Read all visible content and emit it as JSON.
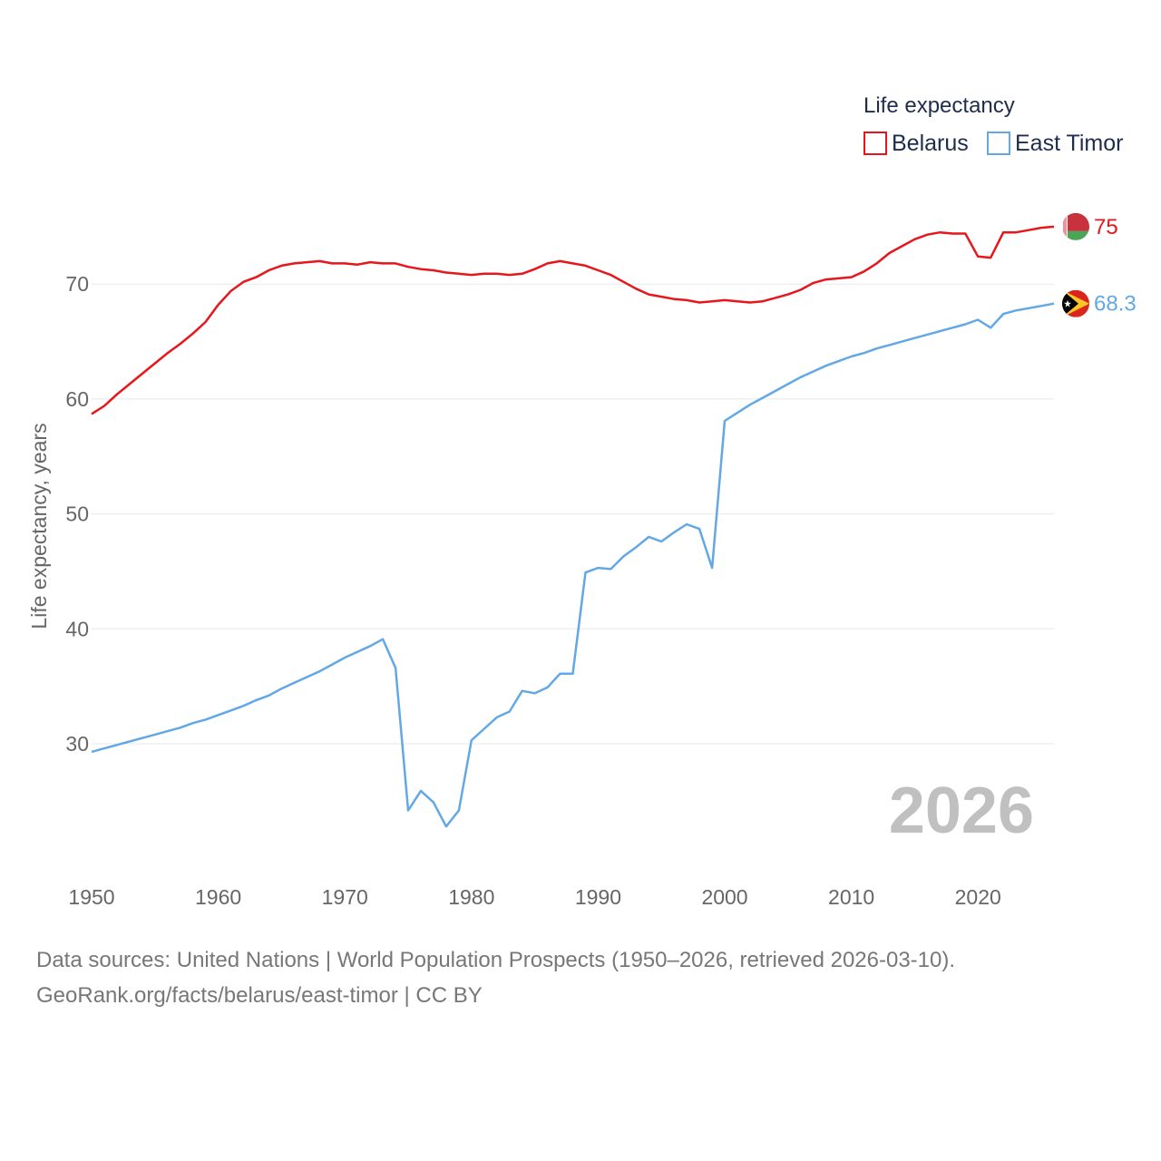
{
  "chart_data": {
    "type": "line",
    "legend_title": "Life expectancy",
    "ylabel": "Life expectancy, years",
    "xlabel": "",
    "year_watermark": "2026",
    "xlim": [
      1950,
      2026
    ],
    "ylim": [
      20,
      76
    ],
    "yticks": [
      30,
      40,
      50,
      60,
      70
    ],
    "xticks": [
      1950,
      1960,
      1970,
      1980,
      1990,
      2000,
      2010,
      2020
    ],
    "legend_position": "top-right",
    "series": [
      {
        "name": "Belarus",
        "color": "#e8161b",
        "end_label": "75",
        "flag": "belarus",
        "x": [
          1950,
          1951,
          1952,
          1953,
          1954,
          1955,
          1956,
          1957,
          1958,
          1959,
          1960,
          1961,
          1962,
          1963,
          1964,
          1965,
          1966,
          1967,
          1968,
          1969,
          1970,
          1971,
          1972,
          1973,
          1974,
          1975,
          1976,
          1977,
          1978,
          1979,
          1980,
          1981,
          1982,
          1983,
          1984,
          1985,
          1986,
          1987,
          1988,
          1989,
          1990,
          1991,
          1992,
          1993,
          1994,
          1995,
          1996,
          1997,
          1998,
          1999,
          2000,
          2001,
          2002,
          2003,
          2004,
          2005,
          2006,
          2007,
          2008,
          2009,
          2010,
          2011,
          2012,
          2013,
          2014,
          2015,
          2016,
          2017,
          2018,
          2019,
          2020,
          2021,
          2022,
          2023,
          2024,
          2025,
          2026
        ],
        "values": [
          58.7,
          59.4,
          60.4,
          61.3,
          62.2,
          63.1,
          64.0,
          64.8,
          65.7,
          66.7,
          68.2,
          69.4,
          70.2,
          70.6,
          71.2,
          71.6,
          71.8,
          71.9,
          72.0,
          71.8,
          71.8,
          71.7,
          71.9,
          71.8,
          71.8,
          71.5,
          71.3,
          71.2,
          71.0,
          70.9,
          70.8,
          70.9,
          70.9,
          70.8,
          70.9,
          71.3,
          71.8,
          72.0,
          71.8,
          71.6,
          71.2,
          70.8,
          70.2,
          69.6,
          69.1,
          68.9,
          68.7,
          68.6,
          68.4,
          68.5,
          68.6,
          68.5,
          68.4,
          68.5,
          68.8,
          69.1,
          69.5,
          70.1,
          70.4,
          70.5,
          70.6,
          71.1,
          71.8,
          72.7,
          73.3,
          73.9,
          74.3,
          74.5,
          74.4,
          74.4,
          72.4,
          72.3,
          74.5,
          74.5,
          74.7,
          74.9,
          75.0
        ]
      },
      {
        "name": "East Timor",
        "color": "#62a8e5",
        "end_label": "68.3",
        "flag": "east-timor",
        "x": [
          1950,
          1951,
          1952,
          1953,
          1954,
          1955,
          1956,
          1957,
          1958,
          1959,
          1960,
          1961,
          1962,
          1963,
          1964,
          1965,
          1966,
          1967,
          1968,
          1969,
          1970,
          1971,
          1972,
          1973,
          1974,
          1975,
          1976,
          1977,
          1978,
          1979,
          1980,
          1981,
          1982,
          1983,
          1984,
          1985,
          1986,
          1987,
          1988,
          1989,
          1990,
          1991,
          1992,
          1993,
          1994,
          1995,
          1996,
          1997,
          1998,
          1999,
          2000,
          2001,
          2002,
          2003,
          2004,
          2005,
          2006,
          2007,
          2008,
          2009,
          2010,
          2011,
          2012,
          2013,
          2014,
          2015,
          2016,
          2017,
          2018,
          2019,
          2020,
          2021,
          2022,
          2023,
          2024,
          2025,
          2026
        ],
        "values": [
          29.3,
          29.6,
          29.9,
          30.2,
          30.5,
          30.8,
          31.1,
          31.4,
          31.8,
          32.1,
          32.5,
          32.9,
          33.3,
          33.8,
          34.2,
          34.8,
          35.3,
          35.8,
          36.3,
          36.9,
          37.5,
          38.0,
          38.5,
          39.1,
          36.6,
          24.2,
          25.9,
          24.9,
          22.8,
          24.2,
          30.3,
          31.3,
          32.3,
          32.8,
          34.6,
          34.4,
          34.9,
          36.1,
          36.1,
          44.9,
          45.3,
          45.2,
          46.3,
          47.1,
          48.0,
          47.6,
          48.4,
          49.1,
          48.7,
          45.3,
          58.1,
          58.8,
          59.5,
          60.1,
          60.7,
          61.3,
          61.9,
          62.4,
          62.9,
          63.3,
          63.7,
          64.0,
          64.4,
          64.7,
          65.0,
          65.3,
          65.6,
          65.9,
          66.2,
          66.5,
          66.9,
          66.2,
          67.4,
          67.7,
          67.9,
          68.1,
          68.3
        ]
      }
    ]
  },
  "footer": {
    "line1": "Data sources: United Nations | World Population Prospects (1950–2026, retrieved 2026-03-10).",
    "line2": "GeoRank.org/facts/belarus/east-timor | CC BY"
  }
}
